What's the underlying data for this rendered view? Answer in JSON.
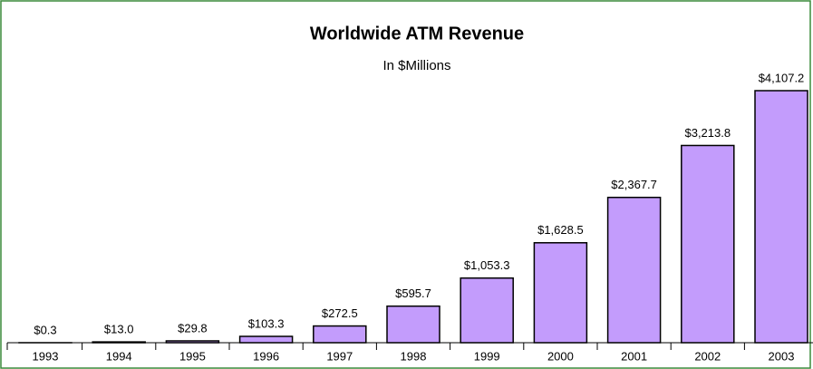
{
  "chart_data": {
    "type": "bar",
    "title": "Worldwide ATM Revenue",
    "subtitle": "In $Millions",
    "categories": [
      "1993",
      "1994",
      "1995",
      "1996",
      "1997",
      "1998",
      "1999",
      "2000",
      "2001",
      "2002",
      "2003"
    ],
    "values": [
      0.3,
      13.0,
      29.8,
      103.3,
      272.5,
      595.7,
      1053.3,
      1628.5,
      2367.7,
      3213.8,
      4107.2
    ],
    "value_labels": [
      "$0.3",
      "$13.0",
      "$29.8",
      "$103.3",
      "$272.5",
      "$595.7",
      "$1,053.3",
      "$1,628.5",
      "$2,367.7",
      "$3,213.8",
      "$4,107.2"
    ],
    "color": "#c39cfc"
  }
}
